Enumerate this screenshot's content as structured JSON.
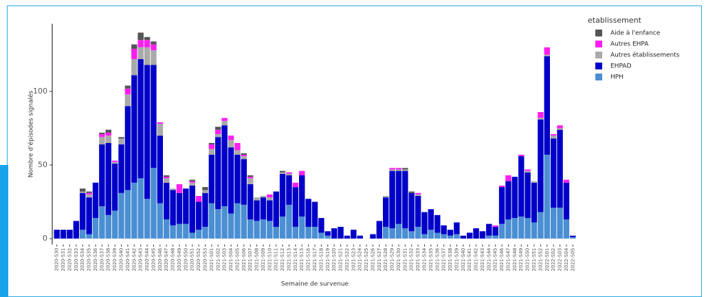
{
  "chart_data": {
    "type": "stacked-bar",
    "y_label": "Nombre d'épisodes signalés",
    "x_label": "Semaine de survenue",
    "legend_title": "etablissement",
    "legend_position": "right",
    "categories": [
      "2020-S30",
      "2020-S31",
      "2020-S32",
      "2020-S33",
      "2020-S34",
      "2020-S35",
      "2020-S36",
      "2020-S37",
      "2020-S38",
      "2020-S39",
      "2020-S40",
      "2020-S41",
      "2020-S42",
      "2020-S43",
      "2020-S44",
      "2020-S45",
      "2020-S46",
      "2020-S47",
      "2020-S48",
      "2020-S49",
      "2020-S50",
      "2020-S51",
      "2020-S52",
      "2020-S53",
      "2021-S01",
      "2021-S02",
      "2021-S03",
      "2021-S04",
      "2021-S05",
      "2021-S06",
      "2021-S07",
      "2021-S08",
      "2021-S09",
      "2021-S10",
      "2021-S11",
      "2021-S12",
      "2021-S13",
      "2021-S14",
      "2021-S15",
      "2021-S16",
      "2021-S17",
      "2021-S18",
      "2021-S19",
      "2021-S20",
      "2021-S21",
      "2021-S22",
      "2021-S23",
      "2021-S24",
      "2021-S25",
      "2021-S26",
      "2021-S27",
      "2021-S28",
      "2021-S29",
      "2021-S30",
      "2021-S31",
      "2021-S32",
      "2021-S33",
      "2021-S34",
      "2021-S35",
      "2021-S36",
      "2021-S37",
      "2021-S38",
      "2021-S39",
      "2021-S40",
      "2021-S41",
      "2021-S42",
      "2021-S43",
      "2021-S44",
      "2021-S45",
      "2021-S46",
      "2021-S47",
      "2021-S48",
      "2021-S49",
      "2021-S50",
      "2021-S51",
      "2021-S52",
      "2022-S01",
      "2022-S02",
      "2022-S03",
      "2022-S04",
      "2022-S05"
    ],
    "series": [
      {
        "name": "Aide à l'enfance",
        "color": "#555555",
        "values": [
          0,
          0,
          0,
          0,
          2,
          1,
          0,
          1,
          2,
          0,
          1,
          2,
          3,
          5,
          2,
          2,
          0,
          1,
          0,
          0,
          0,
          1,
          0,
          2,
          1,
          2,
          0,
          0,
          0,
          1,
          1,
          0,
          0,
          0,
          0,
          1,
          0,
          0,
          0,
          0,
          0,
          0,
          0,
          0,
          0,
          0,
          0,
          0,
          0,
          0,
          0,
          0,
          0,
          0,
          1,
          1,
          0,
          0,
          0,
          0,
          0,
          0,
          0,
          0,
          0,
          0,
          0,
          0,
          0,
          0,
          0,
          0,
          0,
          0,
          0,
          0,
          0,
          0,
          0,
          0,
          0
        ]
      },
      {
        "name": "Autres EHPA",
        "color": "#ff1ff0",
        "values": [
          0,
          0,
          0,
          0,
          0,
          1,
          0,
          2,
          2,
          1,
          0,
          4,
          7,
          5,
          5,
          4,
          1,
          1,
          0,
          6,
          0,
          1,
          4,
          0,
          3,
          3,
          2,
          3,
          5,
          1,
          1,
          0,
          0,
          2,
          0,
          0,
          1,
          3,
          3,
          0,
          0,
          0,
          0,
          0,
          0,
          0,
          0,
          0,
          0,
          0,
          0,
          0,
          1,
          1,
          0,
          0,
          1,
          0,
          0,
          0,
          0,
          0,
          0,
          0,
          0,
          0,
          0,
          0,
          1,
          1,
          4,
          0,
          1,
          1,
          0,
          4,
          5,
          1,
          2,
          2,
          0
        ]
      },
      {
        "name": "Autres établissements",
        "color": "#aaaaaa",
        "values": [
          0,
          0,
          0,
          0,
          1,
          2,
          0,
          5,
          5,
          1,
          4,
          8,
          11,
          8,
          12,
          10,
          8,
          3,
          1,
          0,
          0,
          2,
          0,
          2,
          4,
          2,
          3,
          5,
          3,
          2,
          4,
          2,
          1,
          2,
          0,
          1,
          1,
          0,
          0,
          0,
          0,
          0,
          0,
          0,
          0,
          0,
          0,
          0,
          0,
          0,
          0,
          1,
          1,
          1,
          1,
          0,
          1,
          0,
          0,
          0,
          0,
          0,
          0,
          0,
          0,
          0,
          0,
          0,
          0,
          0,
          0,
          0,
          0,
          1,
          1,
          1,
          1,
          2,
          1,
          0,
          0
        ]
      },
      {
        "name": "EHPAD",
        "color": "#0000c8",
        "values": [
          6,
          6,
          6,
          12,
          25,
          25,
          24,
          42,
          49,
          32,
          33,
          57,
          73,
          81,
          91,
          70,
          46,
          25,
          24,
          21,
          24,
          32,
          19,
          23,
          33,
          49,
          55,
          45,
          33,
          31,
          24,
          14,
          15,
          14,
          24,
          29,
          20,
          27,
          28,
          19,
          17,
          10,
          3,
          7,
          8,
          2,
          6,
          2,
          0,
          3,
          12,
          20,
          39,
          36,
          39,
          26,
          21,
          15,
          14,
          12,
          6,
          4,
          8,
          2,
          4,
          7,
          5,
          8,
          6,
          25,
          26,
          28,
          41,
          31,
          27,
          63,
          67,
          47,
          53,
          25,
          1
        ]
      },
      {
        "name": "HPH",
        "color": "#4b8fd3",
        "values": [
          0,
          0,
          0,
          0,
          6,
          3,
          14,
          22,
          16,
          19,
          31,
          33,
          38,
          41,
          27,
          48,
          24,
          13,
          9,
          10,
          10,
          4,
          6,
          8,
          24,
          20,
          22,
          17,
          24,
          23,
          13,
          12,
          13,
          12,
          8,
          15,
          23,
          8,
          15,
          8,
          8,
          4,
          2,
          0,
          0,
          0,
          0,
          0,
          0,
          0,
          0,
          8,
          7,
          10,
          7,
          5,
          8,
          3,
          6,
          4,
          3,
          2,
          3,
          0,
          0,
          0,
          0,
          2,
          2,
          10,
          13,
          14,
          15,
          14,
          11,
          18,
          57,
          21,
          21,
          13,
          1
        ]
      }
    ],
    "ylim": [
      -4,
      146
    ],
    "yticks": [
      0,
      50,
      100
    ]
  }
}
